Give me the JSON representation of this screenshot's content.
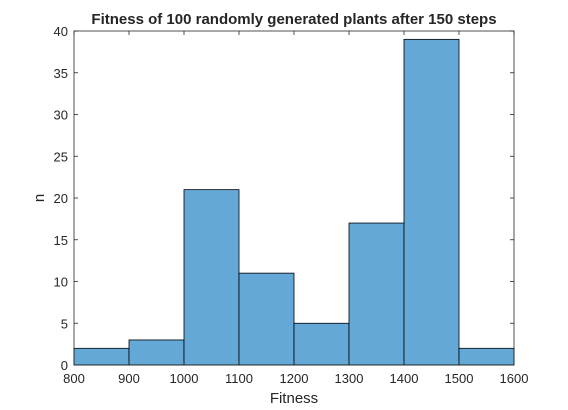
{
  "chart_data": {
    "type": "bar",
    "subtype": "histogram",
    "title": "Fitness of 100 randomly generated plants after 150 steps",
    "xlabel": "Fitness",
    "ylabel": "n",
    "xlim": [
      800,
      1600
    ],
    "ylim": [
      0,
      40
    ],
    "xticks": [
      "800",
      "900",
      "1000",
      "1100",
      "1200",
      "1300",
      "1400",
      "1500",
      "1600"
    ],
    "yticks": [
      "0",
      "5",
      "10",
      "15",
      "20",
      "25",
      "30",
      "35",
      "40"
    ],
    "bins": [
      {
        "start": 800,
        "end": 900,
        "value": 2
      },
      {
        "start": 900,
        "end": 1000,
        "value": 3
      },
      {
        "start": 1000,
        "end": 1100,
        "value": 21
      },
      {
        "start": 1100,
        "end": 1200,
        "value": 11
      },
      {
        "start": 1200,
        "end": 1300,
        "value": 5
      },
      {
        "start": 1300,
        "end": 1400,
        "value": 17
      },
      {
        "start": 1400,
        "end": 1500,
        "value": 39
      },
      {
        "start": 1500,
        "end": 1600,
        "value": 2
      }
    ],
    "grid": false,
    "colors": {
      "bar_fill": "#64a8d8",
      "bar_edge": "#000000",
      "axis": "#262626"
    }
  }
}
